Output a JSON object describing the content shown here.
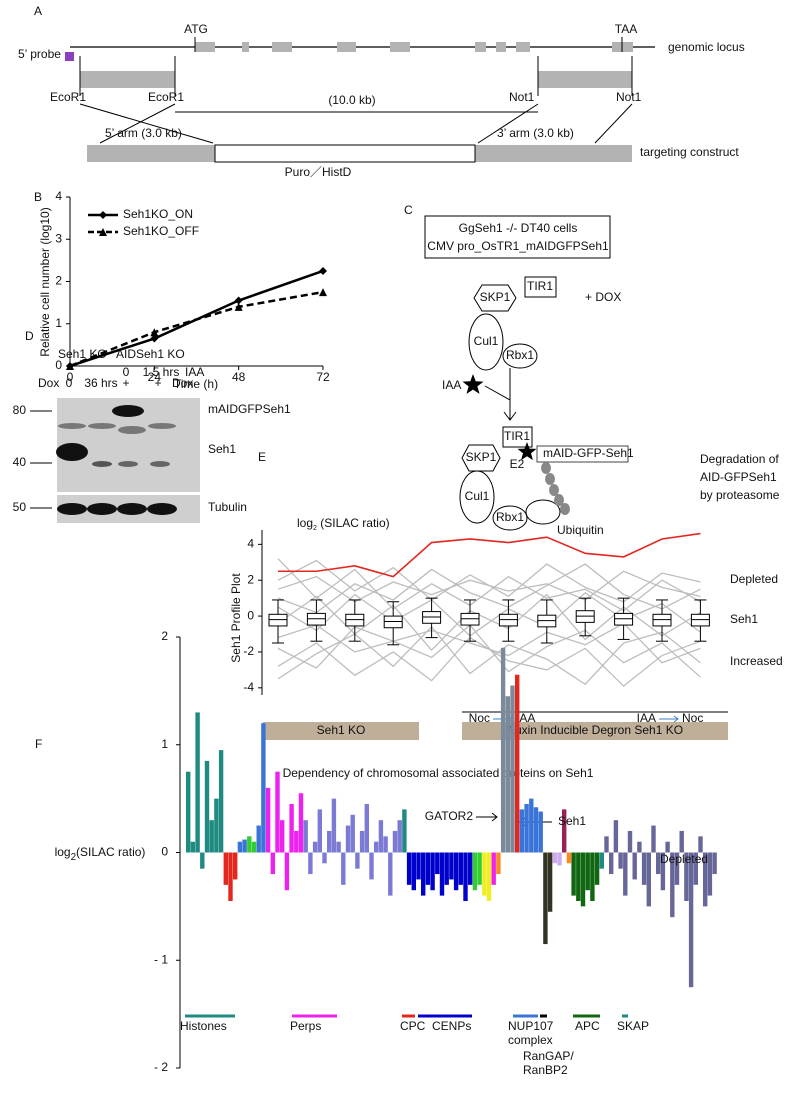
{
  "panel_a": {
    "label": "A",
    "atg": "ATG",
    "taa": "TAA",
    "genomic_locus": "genomic locus",
    "probe": "5’ probe",
    "ecor1_left": "EcoR1",
    "ecor1_right": "EcoR1",
    "not1_left": "Not1",
    "not1_right": "Not1",
    "span": "(10.0 kb)",
    "arm5": "5’ arm  (3.0 kb)",
    "arm3": "3’ arm  (3.0 kb)",
    "cassette": "Puro／HistD",
    "construct": "targeting construct"
  },
  "panel_c": {
    "label": "C",
    "cells_line1": "GgSeh1 -/-   DT40 cells",
    "cells_line2": "CMV pro_OsTR1_mAIDGFPSeh1",
    "dox": "+ DOX",
    "tir1_top": "TIR1",
    "skp1_top": "SKP1",
    "cul1_top": "Cul1",
    "rbx1_top": "Rbx1",
    "iaa": "IAA",
    "tir1_bottom": "TIR1",
    "e2": "E2",
    "target": "mAID-GFP-Seh1",
    "skp1_bottom": "SKP1",
    "cul1_bottom": "Cul1",
    "rbx1_bottom": "Rbx1",
    "ubiquitin": "Ubiquitin",
    "result_line1": "Degradation of",
    "result_line2": "AID-GFPSeh1",
    "result_line3": "by proteasome"
  },
  "panel_d": {
    "label": "D",
    "group1": "Seh1 KO",
    "group2": "AIDSeh1 KO",
    "dox_label": "Dox",
    "lane1": "0",
    "lane2": "36 hrs",
    "lane3_top": "0",
    "lane3": "+",
    "lane4_top": "1.5 hrs",
    "lane4": "+",
    "iaa_label": "IAA",
    "dox_label2": "Dox",
    "marker_80": "80",
    "marker_40": "40",
    "marker_50": "50",
    "band_top": "mAIDGFPSeh1",
    "band_mid": "Seh1",
    "band_bottom": "Tubulin"
  },
  "chart_data": [
    {
      "panel": "B",
      "type": "line",
      "y_label": "Relative cell number (log10)",
      "x_label": "Time (h)",
      "x": [
        0,
        24,
        48,
        72
      ],
      "xlim": [
        0,
        72
      ],
      "xticks": [
        0,
        24,
        48,
        72
      ],
      "ylim": [
        0,
        4
      ],
      "yticks": [
        0,
        1,
        2,
        3,
        4
      ],
      "series": [
        {
          "name": "Seh1KO_ON",
          "color": "#000000",
          "marker": "diamond",
          "dash": "solid",
          "values": [
            0,
            0.65,
            1.55,
            2.25
          ]
        },
        {
          "name": "Seh1KO_OFF",
          "color": "#000000",
          "marker": "triangle",
          "dash": "dashed",
          "values": [
            0,
            0.8,
            1.4,
            1.75
          ]
        }
      ]
    },
    {
      "panel": "E",
      "type": "profile",
      "y_label": "Seh1 Profile Plot",
      "unit": {
        "base": "log",
        "sub": "2",
        "rest": " (SILAC ratio)"
      },
      "ylim": [
        -4.4,
        4.8
      ],
      "yticks": [
        4,
        2,
        0,
        -2,
        -4
      ],
      "profiles": [
        [
          1.5,
          2.2,
          0.8,
          1.9,
          1.2,
          2.0,
          1.4,
          1.8,
          0.9,
          2.5,
          1.6,
          1.1
        ],
        [
          -1.2,
          -0.5,
          -2.0,
          -1.4,
          -0.8,
          -1.5,
          -2.2,
          -0.9,
          -1.6,
          -0.4,
          -2.6,
          -1.8
        ],
        [
          3.2,
          1.0,
          2.6,
          0.4,
          1.8,
          0.6,
          2.2,
          1.0,
          1.5,
          0.3,
          2.0,
          0.8
        ],
        [
          -2.8,
          -1.5,
          -3.3,
          -2.0,
          -3.6,
          -1.2,
          -2.5,
          -3.0,
          -1.8,
          -3.9,
          -2.2,
          -1.4
        ],
        [
          0.5,
          -0.8,
          1.2,
          -0.3,
          0.9,
          -1.1,
          0.4,
          -0.6,
          1.3,
          -0.2,
          0.7,
          -0.9
        ],
        [
          2.0,
          3.1,
          1.4,
          2.7,
          0.9,
          2.3,
          1.1,
          2.9,
          1.6,
          0.8,
          2.4,
          1.9
        ],
        [
          -0.4,
          1.1,
          -1.0,
          0.6,
          -1.9,
          0.3,
          -0.7,
          1.2,
          -1.3,
          0.5,
          -1.1,
          0.2
        ],
        [
          -3.5,
          -2.1,
          -1.0,
          -2.8,
          -0.6,
          -3.2,
          -1.6,
          -2.4,
          -3.8,
          -1.5,
          -0.9,
          -2.6
        ],
        [
          1.0,
          0.2,
          1.8,
          0.9,
          2.6,
          1.3,
          0.5,
          1.7,
          2.9,
          1.2,
          0.4,
          1.5
        ],
        [
          -1.8,
          -2.9,
          -0.6,
          -1.4,
          -2.3,
          -0.5,
          -3.1,
          -1.7,
          -0.8,
          -2.6,
          -1.5,
          -3.4
        ]
      ],
      "profile_color": "#bdbdbd",
      "box": {
        "whisker_low": [
          -1.5,
          -1.4,
          -1.4,
          -1.6,
          -1.2,
          -1.4,
          -1.4,
          -1.5,
          -1.1,
          -1.3,
          -1.4,
          -1.4
        ],
        "q1": [
          -0.55,
          -0.5,
          -0.55,
          -0.65,
          -0.4,
          -0.5,
          -0.55,
          -0.6,
          -0.35,
          -0.5,
          -0.55,
          -0.55
        ],
        "median": [
          -0.2,
          -0.15,
          -0.2,
          -0.3,
          -0.05,
          -0.15,
          -0.2,
          -0.25,
          0.0,
          -0.15,
          -0.2,
          -0.2
        ],
        "q3": [
          0.1,
          0.15,
          0.1,
          0.0,
          0.25,
          0.15,
          0.1,
          0.05,
          0.3,
          0.15,
          0.1,
          0.1
        ],
        "whisker_high": [
          0.9,
          0.9,
          0.9,
          0.8,
          1.0,
          0.9,
          0.9,
          0.9,
          1.0,
          1.0,
          0.9,
          0.9
        ]
      },
      "highlight": {
        "name": "Seh1",
        "color": "#e3271f",
        "values": [
          2.5,
          2.5,
          2.8,
          2.2,
          4.1,
          4.3,
          4.1,
          4.4,
          3.5,
          3.3,
          4.3,
          4.6
        ]
      },
      "depleted": "Depleted",
      "increased": "Increased",
      "treatments": [
        {
          "from": "Noc",
          "to": "IAA"
        },
        {
          "from": "IAA",
          "to": "Noc"
        }
      ],
      "groups": [
        "Seh1 KO",
        "Auxin Inducible Degron Seh1 KO"
      ],
      "group_color": "#bfae98"
    },
    {
      "panel": "F",
      "type": "bar",
      "title": "Dependency of chromosomal associated proteins on Seh1",
      "unit": {
        "base": "log",
        "sub": "2",
        "rest": "(SILAC ratio)"
      },
      "ylim": [
        -2,
        2
      ],
      "yticks": [
        2,
        1,
        0,
        {
          "value": -1,
          "label": "- 1"
        },
        {
          "value": -2,
          "label": "- 2"
        }
      ],
      "values": [
        0.75,
        0.1,
        1.3,
        -0.15,
        0.85,
        0.3,
        0.5,
        0.95,
        -0.3,
        -0.45,
        -0.25,
        0.1,
        0.12,
        0.15,
        0.1,
        0.25,
        1.2,
        0.6,
        -0.2,
        0.75,
        0.3,
        -0.35,
        0.45,
        0.2,
        0.55,
        0.3,
        -0.2,
        0.1,
        0.4,
        -0.1,
        0.2,
        0.5,
        0.1,
        -0.3,
        0.25,
        0.35,
        -0.15,
        0.2,
        0.45,
        -0.25,
        0.1,
        0.3,
        0.15,
        -0.4,
        0.2,
        0.3,
        0.4,
        -0.3,
        -0.35,
        -0.25,
        -0.4,
        -0.3,
        -0.35,
        -0.2,
        -0.4,
        -0.3,
        -0.25,
        -0.35,
        -0.3,
        -0.45,
        -0.3,
        -0.35,
        -0.3,
        -0.4,
        -0.45,
        -0.3,
        -0.2,
        1.9,
        1.45,
        1.55,
        1.65,
        0.4,
        0.45,
        0.5,
        0.42,
        0.38,
        -0.85,
        -0.55,
        -0.1,
        -0.12,
        0.4,
        -0.1,
        -0.4,
        -0.45,
        -0.5,
        -0.35,
        -0.45,
        -0.3,
        -0.15,
        0.15,
        -0.2,
        0.3,
        -0.15,
        -0.4,
        0.2,
        -0.25,
        0.1,
        -0.3,
        -0.5,
        0.25,
        -0.2,
        -0.35,
        0.1,
        -0.6,
        -0.3,
        0.2,
        -0.45,
        -1.25,
        -0.3,
        0.15,
        -0.5,
        -0.4,
        -0.2
      ],
      "colors": [
        "#1f8a80",
        "#1f8a80",
        "#1f8a80",
        "#1f8a80",
        "#1f8a80",
        "#1f8a80",
        "#1f8a80",
        "#1f8a80",
        "#e3271f",
        "#e3271f",
        "#e3271f",
        "#3a74d6",
        "#3a74d6",
        "#33cc33",
        "#33cc33",
        "#3a74d6",
        "#3a74d6",
        "#ee22ee",
        "#ee22ee",
        "#ee22ee",
        "#ee22ee",
        "#ee22ee",
        "#ee22ee",
        "#ee22ee",
        "#ee22ee",
        "#7b7bd6",
        "#7b7bd6",
        "#7b7bd6",
        "#7b7bd6",
        "#7b7bd6",
        "#7b7bd6",
        "#7b7bd6",
        "#7b7bd6",
        "#7b7bd6",
        "#7b7bd6",
        "#7b7bd6",
        "#7b7bd6",
        "#7b7bd6",
        "#7b7bd6",
        "#7b7bd6",
        "#7b7bd6",
        "#7b7bd6",
        "#7b7bd6",
        "#7b7bd6",
        "#7b7bd6",
        "#7b7bd6",
        "#1f8a80",
        "#0000cc",
        "#0000cc",
        "#0000cc",
        "#0000cc",
        "#0000cc",
        "#0000cc",
        "#0000cc",
        "#0000cc",
        "#0000cc",
        "#0000cc",
        "#0000cc",
        "#0000cc",
        "#0000cc",
        "#0000cc",
        "#33cc33",
        "#33cc33",
        "#eeee22",
        "#eeee22",
        "#ee22ee",
        "#ff8822",
        "#7a8a9a",
        "#7a8a9a",
        "#7a8a9a",
        "#e3271f",
        "#3a74d6",
        "#3a74d6",
        "#3a74d6",
        "#3a74d6",
        "#3a74d6",
        "#333322",
        "#333322",
        "#ccaaee",
        "#ccaaee",
        "#992255",
        "#ff8822",
        "#116611",
        "#116611",
        "#116611",
        "#116611",
        "#116611",
        "#116611",
        "#1f8a80",
        "#666699",
        "#666699",
        "#666699",
        "#666699",
        "#666699",
        "#666699",
        "#666699",
        "#666699",
        "#666699",
        "#666699",
        "#666699",
        "#666699",
        "#666699",
        "#666699",
        "#666699",
        "#666699",
        "#666699",
        "#666699",
        "#666699",
        "#666699",
        "#666699",
        "#666699",
        "#666699",
        "#666699"
      ],
      "gator2": "GATOR2",
      "seh1": "Seh1",
      "seh1_color": "#e3271f",
      "depleted": "Depleted",
      "groups": [
        {
          "label": [
            "Histones"
          ],
          "color": "#1f8a80"
        },
        {
          "label": [
            "Perps"
          ],
          "color": "#ee22ee"
        },
        {
          "label": [
            "CPC"
          ],
          "color": "#e3271f"
        },
        {
          "label": [
            "CENPs"
          ],
          "color": "#0000cc"
        },
        {
          "label": [
            "NUP107",
            "complex"
          ],
          "color": "#3a74d6"
        },
        {
          "label": [
            "RanGAP/",
            "RanBP2"
          ],
          "color": "#000000"
        },
        {
          "label": [
            "APC"
          ],
          "color": "#116611"
        },
        {
          "label": [
            "SKAP"
          ],
          "color": "#1f8a80"
        }
      ]
    }
  ]
}
